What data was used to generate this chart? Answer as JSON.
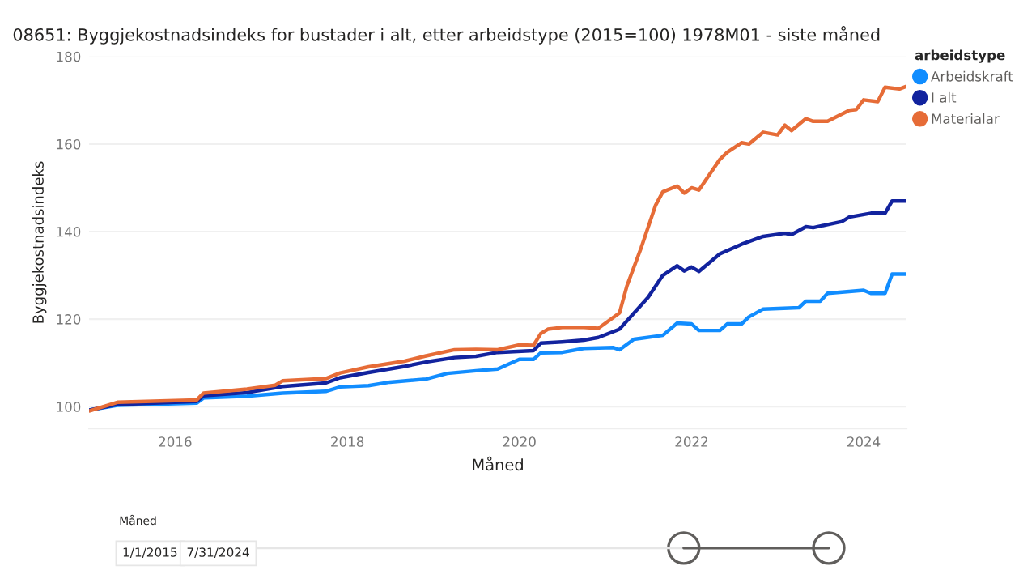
{
  "chart_data": {
    "type": "line",
    "title": "08651: Byggjekostnadsindeks for bustader i alt, etter arbeidstype (2015=100) 1978M01 - siste måned",
    "xlabel": "Måned",
    "ylabel": "Byggjekostnadsindeks",
    "legend_title": "arbeidstype",
    "legend": "top right",
    "grid": "y",
    "xlim": [
      "2015-01",
      "2024-07"
    ],
    "ylim": [
      95,
      180
    ],
    "yticks": [
      100,
      120,
      140,
      160,
      180
    ],
    "xticks": [
      {
        "value": "2016",
        "label": "2016"
      },
      {
        "value": "2018",
        "label": "2018"
      },
      {
        "value": "2020",
        "label": "2020"
      },
      {
        "value": "2022",
        "label": "2022"
      },
      {
        "value": "2024",
        "label": "2024"
      }
    ],
    "series": [
      {
        "name": "Arbeidskraft",
        "color": "#118dff",
        "x": [
          "2015-01",
          "2015-05",
          "2016-04",
          "2016-05",
          "2016-11",
          "2017-04",
          "2017-10",
          "2017-12",
          "2018-04",
          "2018-07",
          "2018-12",
          "2019-03",
          "2019-07",
          "2019-10",
          "2020-01",
          "2020-03",
          "2020-04",
          "2020-07",
          "2020-10",
          "2021-02",
          "2021-03",
          "2021-05",
          "2021-09",
          "2021-11",
          "2022-01",
          "2022-02",
          "2022-05",
          "2022-06",
          "2022-08",
          "2022-09",
          "2022-11",
          "2023-04",
          "2023-05",
          "2023-07",
          "2023-08",
          "2023-11",
          "2024-01",
          "2024-02",
          "2024-04",
          "2024-05",
          "2024-07"
        ],
        "values": [
          99.2,
          100.3,
          100.8,
          102,
          102.4,
          103.1,
          103.5,
          104.5,
          104.8,
          105.6,
          106.3,
          107.6,
          108.2,
          108.6,
          110.8,
          110.8,
          112.3,
          112.4,
          113.3,
          113.5,
          113,
          115.4,
          116.3,
          119.1,
          118.9,
          117.4,
          117.4,
          118.9,
          118.9,
          120.5,
          122.3,
          122.6,
          124.1,
          124.1,
          125.9,
          126.3,
          126.6,
          125.9,
          125.9,
          130.3,
          130.3
        ]
      },
      {
        "name": "I alt",
        "color": "#12239e",
        "x": [
          "2015-01",
          "2015-05",
          "2016-04",
          "2016-05",
          "2016-11",
          "2017-04",
          "2017-10",
          "2017-12",
          "2018-04",
          "2018-09",
          "2018-12",
          "2019-04",
          "2019-07",
          "2019-10",
          "2020-03",
          "2020-04",
          "2020-05",
          "2020-07",
          "2020-10",
          "2020-12",
          "2021-03",
          "2021-07",
          "2021-09",
          "2021-11",
          "2021-12",
          "2022-01",
          "2022-02",
          "2022-05",
          "2022-08",
          "2022-11",
          "2023-02",
          "2023-03",
          "2023-05",
          "2023-06",
          "2023-10",
          "2023-11",
          "2024-02",
          "2024-04",
          "2024-05",
          "2024-07"
        ],
        "values": [
          99.2,
          100.5,
          101.2,
          102.5,
          103.2,
          104.6,
          105.4,
          106.6,
          107.8,
          109.2,
          110.2,
          111.2,
          111.5,
          112.4,
          112.8,
          114.5,
          114.6,
          114.8,
          115.2,
          115.8,
          117.7,
          125,
          130,
          132.2,
          131,
          131.9,
          130.9,
          134.9,
          137.1,
          138.9,
          139.6,
          139.3,
          141.1,
          140.9,
          142.3,
          143.3,
          144.2,
          144.2,
          147,
          147
        ]
      },
      {
        "name": "Materialar",
        "color": "#e66c37",
        "x": [
          "2015-01",
          "2015-05",
          "2016-04",
          "2016-05",
          "2016-11",
          "2017-03",
          "2017-04",
          "2017-10",
          "2017-12",
          "2018-04",
          "2018-09",
          "2018-12",
          "2019-04",
          "2019-07",
          "2019-10",
          "2020-01",
          "2020-03",
          "2020-04",
          "2020-05",
          "2020-07",
          "2020-10",
          "2020-12",
          "2021-03",
          "2021-04",
          "2021-06",
          "2021-08",
          "2021-09",
          "2021-11",
          "2021-12",
          "2022-01",
          "2022-02",
          "2022-05",
          "2022-06",
          "2022-08",
          "2022-09",
          "2022-11",
          "2023-01",
          "2023-02",
          "2023-03",
          "2023-05",
          "2023-06",
          "2023-08",
          "2023-11",
          "2023-12",
          "2024-01",
          "2024-03",
          "2024-04",
          "2024-06",
          "2024-07"
        ],
        "values": [
          99,
          101,
          101.5,
          103.1,
          104,
          104.9,
          105.9,
          106.4,
          107.7,
          109.1,
          110.4,
          111.6,
          113,
          113.1,
          113,
          114.1,
          114,
          116.7,
          117.7,
          118.1,
          118.1,
          117.9,
          121.4,
          127.5,
          136.3,
          146,
          149.1,
          150.4,
          148.8,
          150,
          149.5,
          156.5,
          158.1,
          160.3,
          160,
          162.7,
          162.1,
          164.3,
          163.1,
          165.8,
          165.2,
          165.2,
          167.7,
          167.9,
          170.1,
          169.7,
          173,
          172.6,
          173.2
        ]
      }
    ],
    "annotations": [
      "Måned",
      "1/1/2015",
      "7/31/2024"
    ]
  }
}
